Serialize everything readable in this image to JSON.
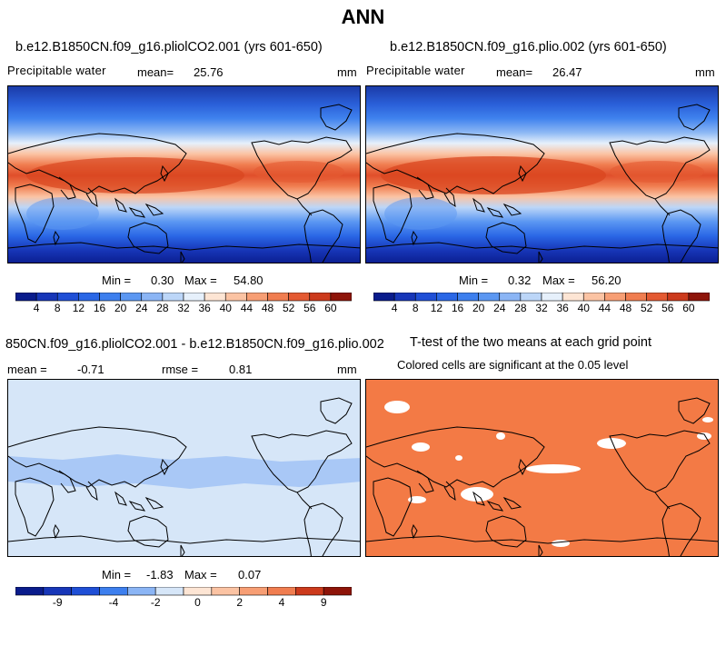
{
  "page_title": "ANN",
  "panels": [
    {
      "title": "b.e12.B1850CN.f09_g16.pliolCO2.001 (yrs 601-650)",
      "left_label": "Precipitable water",
      "mean_label": "mean=",
      "mean_value": "25.76",
      "units": "mm",
      "minmax": {
        "min_label": "Min =",
        "min": "0.30",
        "max_label": "Max =",
        "max": "54.80"
      },
      "colorbar_labels": [
        "4",
        "8",
        "12",
        "16",
        "20",
        "24",
        "28",
        "32",
        "36",
        "40",
        "44",
        "48",
        "52",
        "56",
        "60"
      ]
    },
    {
      "title": "b.e12.B1850CN.f09_g16.plio.002 (yrs 601-650)",
      "left_label": "Precipitable water",
      "mean_label": "mean=",
      "mean_value": "26.47",
      "units": "mm",
      "minmax": {
        "min_label": "Min =",
        "min": "0.32",
        "max_label": "Max =",
        "max": "56.20"
      },
      "colorbar_labels": [
        "4",
        "8",
        "12",
        "16",
        "20",
        "24",
        "28",
        "32",
        "36",
        "40",
        "44",
        "48",
        "52",
        "56",
        "60"
      ]
    },
    {
      "title": "850CN.f09_g16.pliolCO2.001 - b.e12.B1850CN.f09_g16.plio.002",
      "mean_label": "mean =",
      "mean_value": "-0.71",
      "rmse_label": "rmse =",
      "rmse_value": "0.81",
      "units": "mm",
      "minmax": {
        "min_label": "Min =",
        "min": "-1.83",
        "max_label": "Max =",
        "max": "0.07"
      },
      "colorbar_labels": [
        "-9",
        "-4",
        "-2",
        "0",
        "2",
        "4",
        "9"
      ]
    },
    {
      "title": "T-test of the two means at each grid point",
      "subtitle": "Colored cells are significant at the 0.05 level"
    }
  ],
  "chart_data": [
    {
      "type": "heatmap",
      "title": "b.e12.B1850CN.f09_g16.pliolCO2.001 (yrs 601-650)",
      "variable": "Precipitable water",
      "units": "mm",
      "mean": 25.76,
      "min": 0.3,
      "max": 54.8,
      "levels": [
        4,
        8,
        12,
        16,
        20,
        24,
        28,
        32,
        36,
        40,
        44,
        48,
        52,
        56,
        60
      ],
      "colors": [
        "#0a1c8c",
        "#1736b8",
        "#1f4fd6",
        "#2a67e6",
        "#3d7fee",
        "#5b97f2",
        "#8bb5f5",
        "#bcd6f8",
        "#e6f0fb",
        "#fde5d4",
        "#fbc3a3",
        "#f79e74",
        "#f07d50",
        "#e45a32",
        "#cc3a1c",
        "#8e1409"
      ]
    },
    {
      "type": "heatmap",
      "title": "b.e12.B1850CN.f09_g16.plio.002 (yrs 601-650)",
      "variable": "Precipitable water",
      "units": "mm",
      "mean": 26.47,
      "min": 0.32,
      "max": 56.2,
      "levels": [
        4,
        8,
        12,
        16,
        20,
        24,
        28,
        32,
        36,
        40,
        44,
        48,
        52,
        56,
        60
      ],
      "colors": [
        "#0a1c8c",
        "#1736b8",
        "#1f4fd6",
        "#2a67e6",
        "#3d7fee",
        "#5b97f2",
        "#8bb5f5",
        "#bcd6f8",
        "#e6f0fb",
        "#fde5d4",
        "#fbc3a3",
        "#f79e74",
        "#f07d50",
        "#e45a32",
        "#cc3a1c",
        "#8e1409"
      ]
    },
    {
      "type": "heatmap",
      "title": "850CN.f09_g16.pliolCO2.001 - b.e12.B1850CN.f09_g16.plio.002",
      "units": "mm",
      "mean": -0.71,
      "rmse": 0.81,
      "min": -1.83,
      "max": 0.07,
      "levels": [
        -9,
        -4,
        -2,
        0,
        2,
        4,
        9
      ],
      "colors": [
        "#0a1c8c",
        "#1736b8",
        "#1f4fd6",
        "#3d7fee",
        "#8bb5f5",
        "#d6e6f8",
        "#fde5d4",
        "#fbc3a3",
        "#f79e74",
        "#f07d50",
        "#cc3a1c",
        "#8e1409"
      ]
    },
    {
      "type": "heatmap",
      "title": "T-test of the two means at each grid point",
      "subtitle": "Colored cells are significant at the 0.05 level",
      "colors": [
        "#f37a45"
      ]
    }
  ]
}
